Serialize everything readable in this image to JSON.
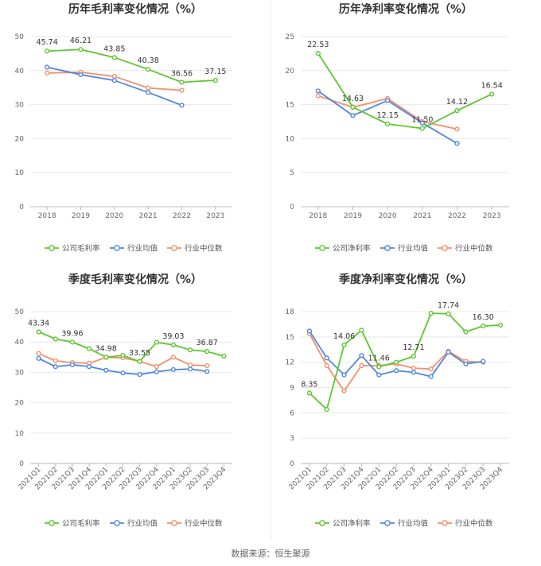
{
  "colors": {
    "company": "#5cc72e",
    "avg": "#4f86e0",
    "median": "#f3906a"
  },
  "source": "数据来源：恒生聚源",
  "chart_data": [
    {
      "id": "annual-gross",
      "type": "line",
      "title": "历年毛利率变化情况（%）",
      "categories": [
        "2018",
        "2019",
        "2020",
        "2021",
        "2022",
        "2023"
      ],
      "ylim": [
        0,
        50
      ],
      "yticks": [
        0,
        10,
        20,
        30,
        40,
        50
      ],
      "grid": true,
      "legend_position": "bottom",
      "series": [
        {
          "name": "公司毛利率",
          "key": "company",
          "values": [
            45.74,
            46.21,
            43.85,
            40.38,
            36.56,
            37.15
          ],
          "labels": [
            "45.74",
            "46.21",
            "43.85",
            "40.38",
            "36.56",
            "37.15"
          ]
        },
        {
          "name": "行业均值",
          "key": "avg",
          "values": [
            41.0,
            38.8,
            37.1,
            33.6,
            29.8,
            null
          ]
        },
        {
          "name": "行业中位数",
          "key": "median",
          "values": [
            39.3,
            39.5,
            38.3,
            34.9,
            34.2,
            null
          ]
        }
      ]
    },
    {
      "id": "annual-net",
      "type": "line",
      "title": "历年净利率变化情况（%）",
      "categories": [
        "2018",
        "2019",
        "2020",
        "2021",
        "2022",
        "2023"
      ],
      "ylim": [
        0,
        25
      ],
      "yticks": [
        0,
        5,
        10,
        15,
        20,
        25
      ],
      "grid": true,
      "legend_position": "bottom",
      "series": [
        {
          "name": "公司净利率",
          "key": "company",
          "values": [
            22.53,
            14.63,
            12.15,
            11.5,
            14.12,
            16.54
          ],
          "labels": [
            "22.53",
            "14.63",
            "12.15",
            "11.50",
            "14.12",
            "16.54"
          ]
        },
        {
          "name": "行业均值",
          "key": "avg",
          "values": [
            17.0,
            13.4,
            15.6,
            12.3,
            9.3,
            null
          ]
        },
        {
          "name": "行业中位数",
          "key": "median",
          "values": [
            16.3,
            14.6,
            15.9,
            12.5,
            11.4,
            null
          ]
        }
      ]
    },
    {
      "id": "quarter-gross",
      "type": "line",
      "title": "季度毛利率变化情况（%）",
      "categories": [
        "2021Q1",
        "2021Q2",
        "2021Q3",
        "2021Q4",
        "2022Q1",
        "2022Q2",
        "2022Q3",
        "2022Q4",
        "2023Q1",
        "2023Q2",
        "2023Q3",
        "2023Q4"
      ],
      "ylim": [
        0,
        50
      ],
      "yticks": [
        0,
        10,
        20,
        30,
        40,
        50
      ],
      "grid": true,
      "legend_position": "bottom",
      "series": [
        {
          "name": "公司毛利率",
          "key": "company",
          "values": [
            43.34,
            41.0,
            39.96,
            37.8,
            34.98,
            35.6,
            33.55,
            39.9,
            39.03,
            37.4,
            36.87,
            35.3
          ],
          "labels": [
            "43.34",
            "",
            "39.96",
            "",
            "34.98",
            "",
            "33.55",
            "",
            "39.03",
            "",
            "36.87",
            ""
          ]
        },
        {
          "name": "行业均值",
          "key": "avg",
          "values": [
            34.6,
            31.9,
            32.5,
            31.9,
            30.7,
            29.8,
            29.3,
            30.2,
            30.9,
            31.1,
            30.3,
            null
          ]
        },
        {
          "name": "行业中位数",
          "key": "median",
          "values": [
            36.2,
            33.8,
            33.2,
            33.0,
            34.9,
            34.8,
            33.6,
            31.9,
            35.0,
            32.4,
            32.2,
            null
          ]
        }
      ]
    },
    {
      "id": "quarter-net",
      "type": "line",
      "title": "季度净利率变化情况（%）",
      "categories": [
        "2021Q1",
        "2021Q2",
        "2021Q3",
        "2021Q4",
        "2022Q1",
        "2022Q2",
        "2022Q3",
        "2022Q4",
        "2023Q1",
        "2023Q2",
        "2023Q3",
        "2023Q4"
      ],
      "ylim": [
        0,
        18
      ],
      "yticks": [
        0,
        3,
        6,
        9,
        12,
        15,
        18
      ],
      "grid": true,
      "legend_position": "bottom",
      "series": [
        {
          "name": "公司净利率",
          "key": "company",
          "values": [
            8.35,
            6.4,
            14.06,
            15.8,
            11.46,
            12.0,
            12.71,
            17.8,
            17.74,
            15.6,
            16.3,
            16.4
          ],
          "labels": [
            "8.35",
            "",
            "14.06",
            "",
            "11.46",
            "",
            "12.71",
            "",
            "17.74",
            "",
            "16.30",
            ""
          ]
        },
        {
          "name": "行业均值",
          "key": "avg",
          "values": [
            15.7,
            12.5,
            10.5,
            12.8,
            10.5,
            11.0,
            10.8,
            10.3,
            13.2,
            11.8,
            12.1,
            null
          ]
        },
        {
          "name": "行业中位数",
          "key": "median",
          "values": [
            15.4,
            11.6,
            8.6,
            11.6,
            11.6,
            11.8,
            11.3,
            11.2,
            13.3,
            12.1,
            12.0,
            null
          ]
        }
      ]
    }
  ]
}
